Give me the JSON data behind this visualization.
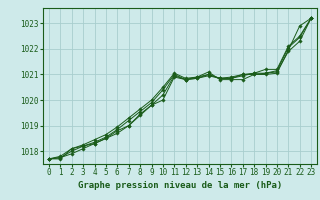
{
  "title": "Graphe pression niveau de la mer (hPa)",
  "background_color": "#ceeaea",
  "grid_color": "#a8cece",
  "line_color": "#1a5c1a",
  "xlim": [
    -0.5,
    23.5
  ],
  "ylim": [
    1017.5,
    1023.6
  ],
  "yticks": [
    1018,
    1019,
    1020,
    1021,
    1022,
    1023
  ],
  "xticks": [
    0,
    1,
    2,
    3,
    4,
    5,
    6,
    7,
    8,
    9,
    10,
    11,
    12,
    13,
    14,
    15,
    16,
    17,
    18,
    19,
    20,
    21,
    22,
    23
  ],
  "series": [
    [
      1017.7,
      1017.75,
      1017.9,
      1018.1,
      1018.3,
      1018.5,
      1018.7,
      1019.0,
      1019.45,
      1019.8,
      1020.0,
      1020.9,
      1020.8,
      1020.9,
      1021.1,
      1020.8,
      1020.8,
      1020.8,
      1021.0,
      1021.0,
      1021.05,
      1021.95,
      1022.9,
      1023.2
    ],
    [
      1017.7,
      1017.75,
      1018.0,
      1018.2,
      1018.35,
      1018.55,
      1018.85,
      1019.2,
      1019.55,
      1019.9,
      1020.4,
      1021.0,
      1020.8,
      1020.85,
      1020.95,
      1020.85,
      1020.85,
      1020.95,
      1021.05,
      1021.05,
      1021.15,
      1022.05,
      1022.45,
      1023.2
    ],
    [
      1017.7,
      1017.8,
      1018.1,
      1018.25,
      1018.45,
      1018.65,
      1018.95,
      1019.3,
      1019.65,
      1020.0,
      1020.5,
      1021.05,
      1020.85,
      1020.9,
      1021.0,
      1020.85,
      1020.9,
      1021.0,
      1021.05,
      1021.2,
      1021.2,
      1022.1,
      1022.5,
      1023.2
    ],
    [
      1017.7,
      1017.7,
      1018.1,
      1018.2,
      1018.3,
      1018.5,
      1018.8,
      1019.0,
      1019.4,
      1019.8,
      1020.2,
      1020.95,
      1020.8,
      1020.85,
      1021.0,
      1020.85,
      1020.85,
      1021.0,
      1021.0,
      1021.05,
      1021.1,
      1021.9,
      1022.3,
      1023.2
    ]
  ],
  "title_fontsize": 6.5,
  "tick_fontsize": 5.5
}
